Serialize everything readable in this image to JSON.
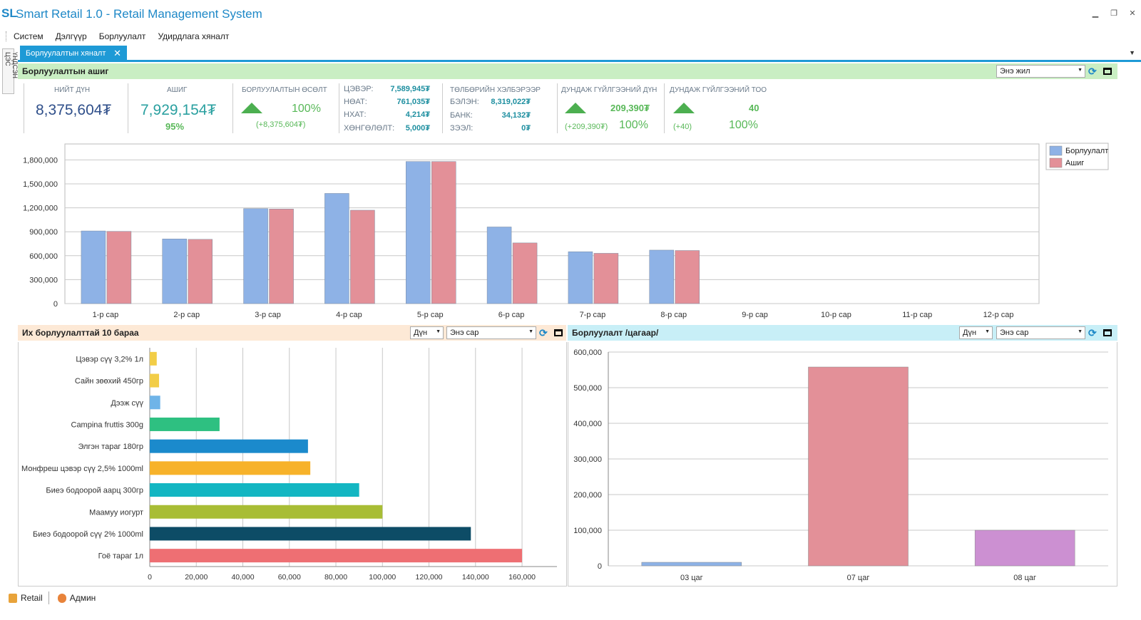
{
  "app": {
    "logo": "SL",
    "title": "Smart Retail 1.0 - Retail Management System"
  },
  "menu": [
    "Систем",
    "Дэлгүүр",
    "Борлуулалт",
    "Удирдлага хяналт"
  ],
  "left_dock": {
    "label": "ҮНДСЭН ЦЭС"
  },
  "tab": {
    "label": "Борлуулалтын хяналт"
  },
  "profit_panel": {
    "title": "Борлуулалтын ашиг",
    "period": "Энэ жил",
    "total": {
      "label": "НИЙТ ДҮН",
      "value": "8,375,604₮"
    },
    "profit": {
      "label": "АШИГ",
      "value": "7,929,154₮",
      "percent": "95%"
    },
    "growth": {
      "label": "БОРЛУУЛАЛТЫН ӨСӨЛТ",
      "percent": "100%",
      "delta": "(+8,375,604₮)"
    },
    "breakdown": [
      {
        "label": "ЦЭВЭР:",
        "value": "7,589,945₮"
      },
      {
        "label": "НӨАТ:",
        "value": "761,035₮"
      },
      {
        "label": "НХАТ:",
        "value": "4,214₮"
      },
      {
        "label": "ХӨНГӨЛӨЛТ:",
        "value": "5,000₮"
      }
    ],
    "payment": {
      "label": "ТӨЛБӨРИЙН ХЭЛБЭРЭЭР",
      "items": [
        {
          "label": "БЭЛЭН:",
          "value": "8,319,022₮"
        },
        {
          "label": "БАНК:",
          "value": "34,132₮"
        },
        {
          "label": "ЗЭЭЛ:",
          "value": "0₮"
        }
      ]
    },
    "avg_amount": {
      "label": "ДУНДАЖ ГҮЙЛГЭЭНИЙ ДҮН",
      "value": "209,390₮",
      "delta": "(+209,390₮)",
      "percent": "100%"
    },
    "avg_count": {
      "label": "ДУНДАЖ ГҮЙЛГЭЭНИЙ ТОО",
      "value": "40",
      "delta": "(+40)",
      "percent": "100%"
    }
  },
  "top_panel": {
    "title": "Их борлуулалттай 10 бараа",
    "metric": "Дүн",
    "period": "Энэ сар"
  },
  "hourly_panel": {
    "title": "Борлуулалт /цагаар/",
    "metric": "Дүн",
    "period": "Энэ сар"
  },
  "status": {
    "retail": "Retail",
    "user": "Админ"
  },
  "chart_data": [
    {
      "type": "bar",
      "categories": [
        "1-р сар",
        "2-р сар",
        "3-р сар",
        "4-р сар",
        "5-р сар",
        "6-р сар",
        "7-р сар",
        "8-р сар",
        "9-р сар",
        "10-р сар",
        "11-р сар",
        "12-р сар"
      ],
      "series": [
        {
          "name": "Борлуулалт",
          "color": "#8eb2e6",
          "values": [
            910000,
            810000,
            1190000,
            1380000,
            1780000,
            960000,
            650000,
            670000,
            0,
            0,
            0,
            0
          ]
        },
        {
          "name": "Ашиг",
          "color": "#e39098",
          "values": [
            905000,
            805000,
            1185000,
            1170000,
            1780000,
            760000,
            630000,
            665000,
            0,
            0,
            0,
            0
          ]
        }
      ],
      "yticks": [
        "0",
        "300,000",
        "600,000",
        "900,000",
        "1,200,000",
        "1,500,000",
        "1,800,000"
      ],
      "ylim": [
        0,
        2000000
      ],
      "legend": "top-right"
    },
    {
      "type": "bar",
      "orientation": "horizontal",
      "categories": [
        "Цэвэр сүү 3,2% 1л",
        "Сайн зөөхий 450гр",
        "Дээж сүү",
        "Campina fruttis 300g",
        "Элгэн тараг 180гр",
        "Монфреш цэвэр сүү 2,5% 1000ml",
        "Биеэ бодоорой аарц 300гр",
        "Маамуу иогурт",
        "Биеэ бодоорой сүү 2% 1000ml",
        "Гоё тараг 1л"
      ],
      "values": [
        3000,
        4000,
        4500,
        30000,
        68000,
        69000,
        90000,
        100000,
        138000,
        160000
      ],
      "colors": [
        "#f2cd47",
        "#f2cd47",
        "#6fb4e8",
        "#2ec081",
        "#1b8acc",
        "#f7b22a",
        "#13b6c2",
        "#a8bd35",
        "#0d4c66",
        "#ee6f73"
      ],
      "xticks": [
        "0",
        "20,000",
        "40,000",
        "60,000",
        "80,000",
        "100,000",
        "120,000",
        "140,000",
        "160,000"
      ],
      "xlim": [
        0,
        175000
      ]
    },
    {
      "type": "bar",
      "categories": [
        "03 цаг",
        "07 цаг",
        "08 цаг"
      ],
      "values": [
        10000,
        558000,
        100000
      ],
      "colors": [
        "#8eb2e6",
        "#e39098",
        "#cc90d2"
      ],
      "yticks": [
        "0",
        "100,000",
        "200,000",
        "300,000",
        "400,000",
        "500,000",
        "600,000"
      ],
      "ylim": [
        0,
        600000
      ]
    }
  ]
}
